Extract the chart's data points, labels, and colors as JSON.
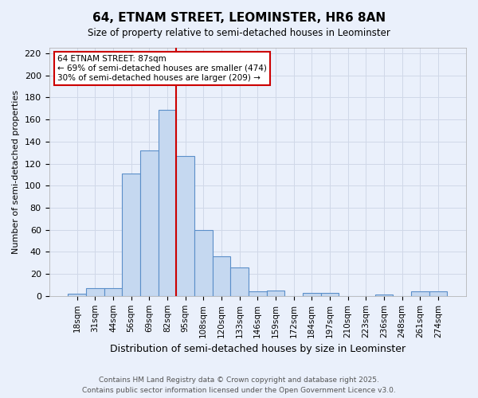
{
  "title1": "64, ETNAM STREET, LEOMINSTER, HR6 8AN",
  "title2": "Size of property relative to semi-detached houses in Leominster",
  "xlabel": "Distribution of semi-detached houses by size in Leominster",
  "ylabel": "Number of semi-detached properties",
  "categories": [
    "18sqm",
    "31sqm",
    "44sqm",
    "56sqm",
    "69sqm",
    "82sqm",
    "95sqm",
    "108sqm",
    "120sqm",
    "133sqm",
    "146sqm",
    "159sqm",
    "172sqm",
    "184sqm",
    "197sqm",
    "210sqm",
    "223sqm",
    "236sqm",
    "248sqm",
    "261sqm",
    "274sqm"
  ],
  "values": [
    2,
    7,
    7,
    111,
    132,
    169,
    127,
    60,
    36,
    26,
    4,
    5,
    0,
    3,
    3,
    0,
    0,
    1,
    0,
    4,
    4
  ],
  "bar_color": "#c5d8f0",
  "bar_edge_color": "#5b8fc9",
  "vline_color": "#cc0000",
  "annotation_text": "64 ETNAM STREET: 87sqm\n← 69% of semi-detached houses are smaller (474)\n30% of semi-detached houses are larger (209) →",
  "annotation_box_color": "#ffffff",
  "annotation_box_edge": "#cc0000",
  "ylim": [
    0,
    225
  ],
  "yticks": [
    0,
    20,
    40,
    60,
    80,
    100,
    120,
    140,
    160,
    180,
    200,
    220
  ],
  "footer1": "Contains HM Land Registry data © Crown copyright and database right 2025.",
  "footer2": "Contains public sector information licensed under the Open Government Licence v3.0.",
  "background_color": "#eaf0fb",
  "grid_color": "#d0d8e8"
}
